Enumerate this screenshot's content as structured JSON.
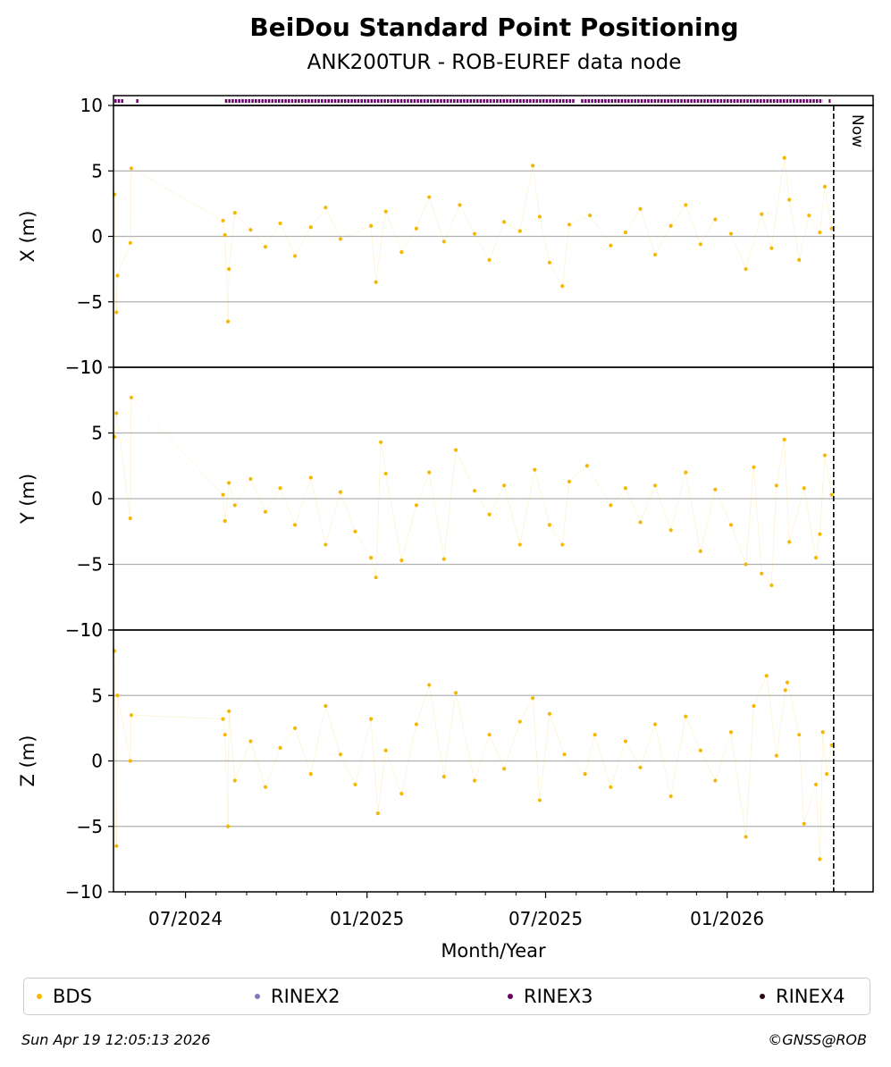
{
  "chart_data": {
    "type": "scatter",
    "title": "BeiDou Standard Point Positioning",
    "subtitle": "ANK200TUR - ROB-EUREF data node",
    "xlabel": "Month/Year",
    "x_ticks": [
      "07/2024",
      "01/2025",
      "07/2025",
      "01/2026"
    ],
    "x_range": [
      "2024-04-19",
      "2026-05-29"
    ],
    "now": "2026-04-19",
    "now_label": "Now",
    "grid": true,
    "legend_position": "bottom",
    "legend": [
      {
        "name": "BDS",
        "color": "#f5b800"
      },
      {
        "name": "RINEX2",
        "color": "#7b7bb8"
      },
      {
        "name": "RINEX3",
        "color": "#6a006a"
      },
      {
        "name": "RINEX4",
        "color": "#2a0a1a"
      }
    ],
    "rinex3_availability": [
      [
        "2024-04-20",
        "2024-04-28"
      ],
      [
        "2024-05-12",
        "2024-05-14"
      ],
      [
        "2024-08-10",
        "2025-07-30"
      ],
      [
        "2025-08-06",
        "2026-04-07"
      ],
      [
        "2026-04-14",
        "2026-04-15"
      ]
    ],
    "panels": [
      {
        "ylabel": "X (m)",
        "ylim": [
          -10,
          10
        ],
        "yticks": [
          10,
          5,
          0,
          -5,
          -10
        ],
        "series": [
          {
            "name": "BDS",
            "points": [
              [
                "2024-04-20",
                3.2
              ],
              [
                "2024-04-22",
                -5.8
              ],
              [
                "2024-04-23",
                -3.0
              ],
              [
                "2024-05-06",
                -0.5
              ],
              [
                "2024-05-07",
                5.2
              ],
              [
                "2024-08-08",
                1.2
              ],
              [
                "2024-08-10",
                0.1
              ],
              [
                "2024-08-13",
                -6.5
              ],
              [
                "2024-08-14",
                -2.5
              ],
              [
                "2024-08-20",
                1.8
              ],
              [
                "2024-09-05",
                0.5
              ],
              [
                "2024-09-20",
                -0.8
              ],
              [
                "2024-10-05",
                1.0
              ],
              [
                "2024-10-20",
                -1.5
              ],
              [
                "2024-11-05",
                0.7
              ],
              [
                "2024-11-20",
                2.2
              ],
              [
                "2024-12-05",
                -0.2
              ],
              [
                "2025-01-05",
                0.8
              ],
              [
                "2025-01-10",
                -3.5
              ],
              [
                "2025-01-20",
                1.9
              ],
              [
                "2025-02-05",
                -1.2
              ],
              [
                "2025-02-20",
                0.6
              ],
              [
                "2025-03-05",
                3.0
              ],
              [
                "2025-03-20",
                -0.4
              ],
              [
                "2025-04-05",
                2.4
              ],
              [
                "2025-04-20",
                0.2
              ],
              [
                "2025-05-05",
                -1.8
              ],
              [
                "2025-05-20",
                1.1
              ],
              [
                "2025-06-05",
                0.4
              ],
              [
                "2025-06-18",
                5.4
              ],
              [
                "2025-06-25",
                1.5
              ],
              [
                "2025-07-05",
                -2.0
              ],
              [
                "2025-07-18",
                -3.8
              ],
              [
                "2025-07-25",
                0.9
              ],
              [
                "2025-08-15",
                1.6
              ],
              [
                "2025-09-05",
                -0.7
              ],
              [
                "2025-09-20",
                0.3
              ],
              [
                "2025-10-05",
                2.1
              ],
              [
                "2025-10-20",
                -1.4
              ],
              [
                "2025-11-05",
                0.8
              ],
              [
                "2025-11-20",
                2.4
              ],
              [
                "2025-12-05",
                -0.6
              ],
              [
                "2025-12-20",
                1.3
              ],
              [
                "2026-01-05",
                0.2
              ],
              [
                "2026-01-20",
                -2.5
              ],
              [
                "2026-02-05",
                1.7
              ],
              [
                "2026-02-15",
                -0.9
              ],
              [
                "2026-02-28",
                6.0
              ],
              [
                "2026-03-05",
                2.8
              ],
              [
                "2026-03-15",
                -1.8
              ],
              [
                "2026-03-25",
                1.6
              ],
              [
                "2026-04-05",
                0.3
              ],
              [
                "2026-04-10",
                3.8
              ],
              [
                "2026-04-17",
                0.6
              ]
            ]
          }
        ]
      },
      {
        "ylabel": "Y (m)",
        "ylim": [
          -10,
          10
        ],
        "yticks": [
          10,
          5,
          0,
          -5,
          -10
        ],
        "series": [
          {
            "name": "BDS",
            "points": [
              [
                "2024-04-20",
                4.7
              ],
              [
                "2024-04-22",
                6.5
              ],
              [
                "2024-05-06",
                -1.5
              ],
              [
                "2024-05-07",
                7.7
              ],
              [
                "2024-08-08",
                0.3
              ],
              [
                "2024-08-10",
                -1.7
              ],
              [
                "2024-08-14",
                1.2
              ],
              [
                "2024-08-20",
                -0.5
              ],
              [
                "2024-09-05",
                1.5
              ],
              [
                "2024-09-20",
                -1.0
              ],
              [
                "2024-10-05",
                0.8
              ],
              [
                "2024-10-20",
                -2.0
              ],
              [
                "2024-11-05",
                1.6
              ],
              [
                "2024-11-20",
                -3.5
              ],
              [
                "2024-12-05",
                0.5
              ],
              [
                "2024-12-20",
                -2.5
              ],
              [
                "2025-01-05",
                -4.5
              ],
              [
                "2025-01-10",
                -6.0
              ],
              [
                "2025-01-15",
                4.3
              ],
              [
                "2025-01-20",
                1.9
              ],
              [
                "2025-02-05",
                -4.7
              ],
              [
                "2025-02-20",
                -0.5
              ],
              [
                "2025-03-05",
                2.0
              ],
              [
                "2025-03-20",
                -4.6
              ],
              [
                "2025-04-01",
                3.7
              ],
              [
                "2025-04-20",
                0.6
              ],
              [
                "2025-05-05",
                -1.2
              ],
              [
                "2025-05-20",
                1.0
              ],
              [
                "2025-06-05",
                -3.5
              ],
              [
                "2025-06-20",
                2.2
              ],
              [
                "2025-07-05",
                -2.0
              ],
              [
                "2025-07-18",
                -3.5
              ],
              [
                "2025-07-25",
                1.3
              ],
              [
                "2025-08-12",
                2.5
              ],
              [
                "2025-09-05",
                -0.5
              ],
              [
                "2025-09-20",
                0.8
              ],
              [
                "2025-10-05",
                -1.8
              ],
              [
                "2025-10-20",
                1.0
              ],
              [
                "2025-11-05",
                -2.4
              ],
              [
                "2025-11-20",
                2.0
              ],
              [
                "2025-12-05",
                -4.0
              ],
              [
                "2025-12-20",
                0.7
              ],
              [
                "2026-01-05",
                -2.0
              ],
              [
                "2026-01-20",
                -5.0
              ],
              [
                "2026-01-28",
                2.4
              ],
              [
                "2026-02-05",
                -5.7
              ],
              [
                "2026-02-15",
                -6.6
              ],
              [
                "2026-02-20",
                1.0
              ],
              [
                "2026-02-28",
                4.5
              ],
              [
                "2026-03-05",
                -3.3
              ],
              [
                "2026-03-20",
                0.8
              ],
              [
                "2026-04-01",
                -4.5
              ],
              [
                "2026-04-05",
                -2.7
              ],
              [
                "2026-04-10",
                3.3
              ],
              [
                "2026-04-17",
                0.3
              ]
            ]
          }
        ]
      },
      {
        "ylabel": "Z (m)",
        "ylim": [
          -10,
          10
        ],
        "yticks": [
          10,
          5,
          0,
          -5,
          -10
        ],
        "series": [
          {
            "name": "BDS",
            "points": [
              [
                "2024-04-20",
                8.4
              ],
              [
                "2024-04-22",
                -6.5
              ],
              [
                "2024-04-23",
                5.0
              ],
              [
                "2024-05-06",
                0.0
              ],
              [
                "2024-05-07",
                3.5
              ],
              [
                "2024-08-08",
                3.2
              ],
              [
                "2024-08-10",
                2.0
              ],
              [
                "2024-08-13",
                -5.0
              ],
              [
                "2024-08-14",
                3.8
              ],
              [
                "2024-08-20",
                -1.5
              ],
              [
                "2024-09-05",
                1.5
              ],
              [
                "2024-09-20",
                -2.0
              ],
              [
                "2024-10-05",
                1.0
              ],
              [
                "2024-10-20",
                2.5
              ],
              [
                "2024-11-05",
                -1.0
              ],
              [
                "2024-11-20",
                4.2
              ],
              [
                "2024-12-05",
                0.5
              ],
              [
                "2024-12-20",
                -1.8
              ],
              [
                "2025-01-05",
                3.2
              ],
              [
                "2025-01-12",
                -4.0
              ],
              [
                "2025-01-20",
                0.8
              ],
              [
                "2025-02-05",
                -2.5
              ],
              [
                "2025-02-20",
                2.8
              ],
              [
                "2025-03-05",
                5.8
              ],
              [
                "2025-03-20",
                -1.2
              ],
              [
                "2025-04-01",
                5.2
              ],
              [
                "2025-04-20",
                -1.5
              ],
              [
                "2025-05-05",
                2.0
              ],
              [
                "2025-05-20",
                -0.6
              ],
              [
                "2025-06-05",
                3.0
              ],
              [
                "2025-06-18",
                4.8
              ],
              [
                "2025-06-25",
                -3.0
              ],
              [
                "2025-07-05",
                3.6
              ],
              [
                "2025-07-20",
                0.5
              ],
              [
                "2025-08-10",
                -1.0
              ],
              [
                "2025-08-20",
                2.0
              ],
              [
                "2025-09-05",
                -2.0
              ],
              [
                "2025-09-20",
                1.5
              ],
              [
                "2025-10-05",
                -0.5
              ],
              [
                "2025-10-20",
                2.8
              ],
              [
                "2025-11-05",
                -2.7
              ],
              [
                "2025-11-20",
                3.4
              ],
              [
                "2025-12-05",
                0.8
              ],
              [
                "2025-12-20",
                -1.5
              ],
              [
                "2026-01-05",
                2.2
              ],
              [
                "2026-01-20",
                -5.8
              ],
              [
                "2026-01-28",
                4.2
              ],
              [
                "2026-02-10",
                6.5
              ],
              [
                "2026-02-20",
                0.4
              ],
              [
                "2026-03-01",
                5.4
              ],
              [
                "2026-03-03",
                6.0
              ],
              [
                "2026-03-15",
                2.0
              ],
              [
                "2026-03-20",
                -4.8
              ],
              [
                "2026-04-01",
                -1.8
              ],
              [
                "2026-04-05",
                -7.5
              ],
              [
                "2026-04-08",
                2.2
              ],
              [
                "2026-04-12",
                -1.0
              ],
              [
                "2026-04-17",
                1.2
              ]
            ]
          }
        ]
      }
    ]
  },
  "footer": {
    "timestamp": "Sun Apr 19 12:05:13 2026",
    "credit": "©GNSS@ROB"
  }
}
